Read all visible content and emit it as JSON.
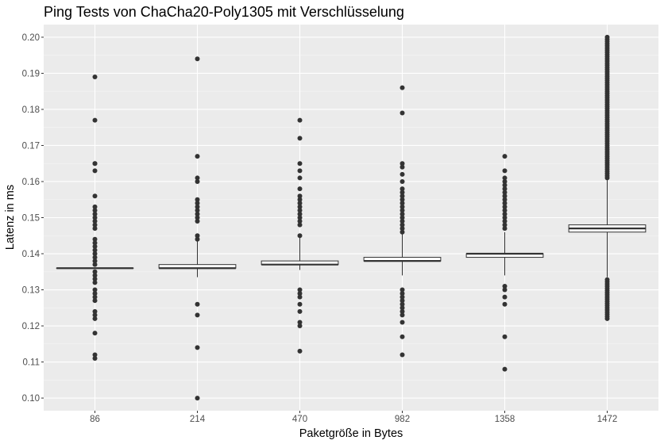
{
  "chart_data": {
    "type": "boxplot",
    "title": "Ping Tests von ChaCha20-Poly1305 mit Verschlüsselung",
    "xlabel": "Paketgröße in Bytes",
    "ylabel": "Latenz in ms",
    "categories": [
      "86",
      "214",
      "470",
      "982",
      "1358",
      "1472"
    ],
    "ylim": [
      0.0965,
      0.2035
    ],
    "y_ticks": [
      0.1,
      0.11,
      0.12,
      0.13,
      0.14,
      0.15,
      0.16,
      0.17,
      0.18,
      0.19,
      0.2
    ],
    "y_tick_labels": [
      "0.10",
      "0.11",
      "0.12",
      "0.13",
      "0.14",
      "0.15",
      "0.16",
      "0.17",
      "0.18",
      "0.19",
      "0.20"
    ],
    "grid": true,
    "legend": "none",
    "boxes": [
      {
        "category": "86",
        "q1": 0.136,
        "median": 0.136,
        "q3": 0.136,
        "whisker_low": 0.136,
        "whisker_high": 0.136,
        "outliers": [
          0.189,
          0.177,
          0.165,
          0.165,
          0.163,
          0.156,
          0.153,
          0.152,
          0.151,
          0.15,
          0.149,
          0.148,
          0.147,
          0.144,
          0.143,
          0.142,
          0.141,
          0.14,
          0.139,
          0.138,
          0.137,
          0.135,
          0.134,
          0.133,
          0.132,
          0.13,
          0.129,
          0.128,
          0.127,
          0.124,
          0.123,
          0.122,
          0.118,
          0.112,
          0.111
        ]
      },
      {
        "category": "214",
        "q1": 0.136,
        "median": 0.136,
        "q3": 0.137,
        "whisker_low": 0.1335,
        "whisker_high": 0.1435,
        "outliers": [
          0.194,
          0.167,
          0.161,
          0.16,
          0.155,
          0.154,
          0.153,
          0.152,
          0.151,
          0.15,
          0.149,
          0.145,
          0.144,
          0.126,
          0.123,
          0.114,
          0.1
        ]
      },
      {
        "category": "470",
        "q1": 0.137,
        "median": 0.137,
        "q3": 0.138,
        "whisker_low": 0.1355,
        "whisker_high": 0.1445,
        "outliers": [
          0.177,
          0.172,
          0.165,
          0.163,
          0.161,
          0.158,
          0.156,
          0.155,
          0.154,
          0.153,
          0.152,
          0.151,
          0.15,
          0.149,
          0.148,
          0.145,
          0.13,
          0.129,
          0.128,
          0.126,
          0.124,
          0.121,
          0.12,
          0.113
        ]
      },
      {
        "category": "982",
        "q1": 0.138,
        "median": 0.138,
        "q3": 0.139,
        "whisker_low": 0.134,
        "whisker_high": 0.1455,
        "outliers": [
          0.186,
          0.179,
          0.165,
          0.164,
          0.162,
          0.16,
          0.158,
          0.157,
          0.156,
          0.155,
          0.154,
          0.153,
          0.152,
          0.151,
          0.15,
          0.149,
          0.148,
          0.147,
          0.146,
          0.13,
          0.129,
          0.128,
          0.127,
          0.126,
          0.125,
          0.124,
          0.123,
          0.121,
          0.117,
          0.112
        ]
      },
      {
        "category": "1358",
        "q1": 0.139,
        "median": 0.14,
        "q3": 0.14,
        "whisker_low": 0.134,
        "whisker_high": 0.146,
        "outliers": [
          0.167,
          0.163,
          0.161,
          0.16,
          0.159,
          0.158,
          0.157,
          0.156,
          0.155,
          0.154,
          0.153,
          0.152,
          0.151,
          0.15,
          0.149,
          0.148,
          0.147,
          0.131,
          0.13,
          0.128,
          0.126,
          0.117,
          0.108
        ]
      },
      {
        "category": "1472",
        "q1": 0.146,
        "median": 0.147,
        "q3": 0.148,
        "whisker_low": 0.1335,
        "whisker_high": 0.1605,
        "outlier_bands": [
          {
            "from": 0.161,
            "to": 0.2,
            "step": 0.0006
          },
          {
            "from": 0.122,
            "to": 0.133,
            "step": 0.0006
          }
        ]
      }
    ]
  }
}
